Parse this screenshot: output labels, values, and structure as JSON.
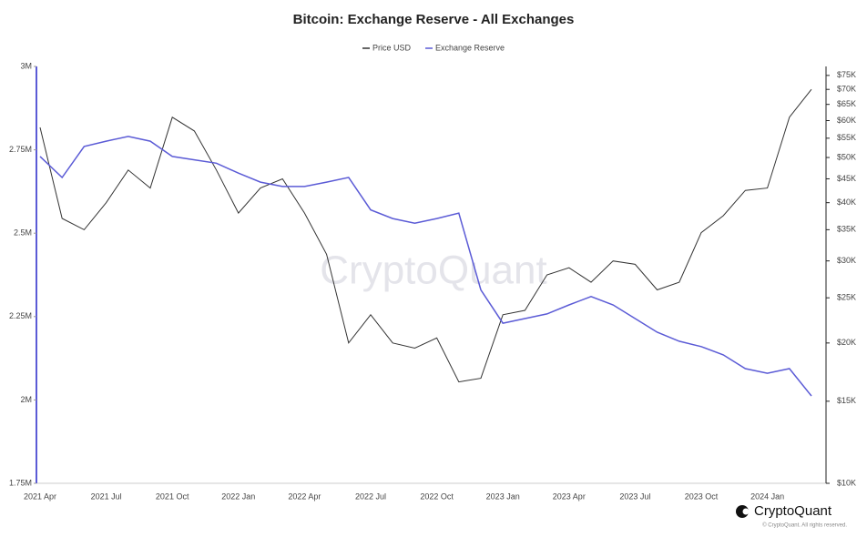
{
  "chart_data": {
    "type": "line",
    "title": "Bitcoin: Exchange Reserve - All Exchanges",
    "watermark": "CryptoQuant",
    "brand": "CryptoQuant",
    "copyright": "© CryptoQuant. All rights reserved.",
    "categories": [
      "2021 Apr",
      null,
      null,
      "2021 Jul",
      null,
      null,
      "2021 Oct",
      null,
      null,
      "2022 Jan",
      null,
      null,
      "2022 Apr",
      null,
      null,
      "2022 Jul",
      null,
      null,
      "2022 Oct",
      null,
      null,
      "2023 Jan",
      null,
      null,
      "2023 Apr",
      null,
      null,
      "2023 Jul",
      null,
      null,
      "2023 Oct",
      null,
      null,
      "2024 Jan",
      null,
      null
    ],
    "series": [
      {
        "name": "Price USD",
        "color": "#333333",
        "axis": "y2",
        "values": [
          58000,
          37000,
          35000,
          40000,
          47000,
          43000,
          61000,
          57000,
          47000,
          38000,
          43000,
          45000,
          38000,
          31000,
          20000,
          23000,
          20000,
          19500,
          20500,
          16500,
          16800,
          23000,
          23500,
          28000,
          29000,
          27000,
          30000,
          29500,
          26000,
          27000,
          34500,
          37500,
          42500,
          43000,
          61000,
          70000
        ]
      },
      {
        "name": "Exchange Reserve",
        "color": "#5b5bd6",
        "values": [
          2730000,
          2667000,
          2760000,
          2776000,
          2790000,
          2776000,
          2730000,
          2720000,
          2710000,
          2680000,
          2653000,
          2640000,
          2640000,
          2653000,
          2667000,
          2570000,
          2544000,
          2530000,
          2544000,
          2560000,
          2330000,
          2230000,
          2244000,
          2258000,
          2285000,
          2310000,
          2285000,
          2244000,
          2203000,
          2176000,
          2160000,
          2135000,
          2094000,
          2080000,
          2094000,
          2012000
        ]
      }
    ],
    "ylim": [
      1750000,
      3000000
    ],
    "yticks": [
      {
        "value": 1750000,
        "label": "1.75M"
      },
      {
        "value": 2000000,
        "label": "2M"
      },
      {
        "value": 2250000,
        "label": "2.25M"
      },
      {
        "value": 2500000,
        "label": "2.5M"
      },
      {
        "value": 2750000,
        "label": "2.75M"
      },
      {
        "value": 3000000,
        "label": "3M"
      }
    ],
    "y2lim": [
      10000,
      78400
    ],
    "y2log": true,
    "y2ticks": [
      {
        "value": 10000,
        "label": "$10K"
      },
      {
        "value": 15000,
        "label": "$15K"
      },
      {
        "value": 20000,
        "label": "$20K"
      },
      {
        "value": 25000,
        "label": "$25K"
      },
      {
        "value": 30000,
        "label": "$30K"
      },
      {
        "value": 35000,
        "label": "$35K"
      },
      {
        "value": 40000,
        "label": "$40K"
      },
      {
        "value": 45000,
        "label": "$45K"
      },
      {
        "value": 50000,
        "label": "$50K"
      },
      {
        "value": 55000,
        "label": "$55K"
      },
      {
        "value": 60000,
        "label": "$60K"
      },
      {
        "value": 65000,
        "label": "$65K"
      },
      {
        "value": 70000,
        "label": "$70K"
      },
      {
        "value": 75000,
        "label": "$75K"
      }
    ]
  }
}
